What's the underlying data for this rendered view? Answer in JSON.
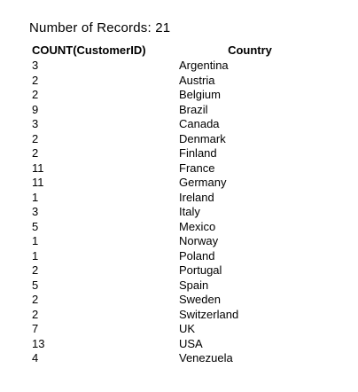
{
  "summary": {
    "label": "Number of Records:",
    "value": "21"
  },
  "table": {
    "headers": [
      "COUNT(CustomerID)",
      "Country"
    ],
    "rows": [
      {
        "count": "3",
        "country": "Argentina"
      },
      {
        "count": "2",
        "country": "Austria"
      },
      {
        "count": "2",
        "country": "Belgium"
      },
      {
        "count": "9",
        "country": "Brazil"
      },
      {
        "count": "3",
        "country": "Canada"
      },
      {
        "count": "2",
        "country": "Denmark"
      },
      {
        "count": "2",
        "country": "Finland"
      },
      {
        "count": "11",
        "country": "France"
      },
      {
        "count": "11",
        "country": "Germany"
      },
      {
        "count": "1",
        "country": "Ireland"
      },
      {
        "count": "3",
        "country": "Italy"
      },
      {
        "count": "5",
        "country": "Mexico"
      },
      {
        "count": "1",
        "country": "Norway"
      },
      {
        "count": "1",
        "country": "Poland"
      },
      {
        "count": "2",
        "country": "Portugal"
      },
      {
        "count": "5",
        "country": "Spain"
      },
      {
        "count": "2",
        "country": "Sweden"
      },
      {
        "count": "2",
        "country": "Switzerland"
      },
      {
        "count": "7",
        "country": "UK"
      },
      {
        "count": "13",
        "country": "USA"
      },
      {
        "count": "4",
        "country": "Venezuela"
      }
    ]
  }
}
